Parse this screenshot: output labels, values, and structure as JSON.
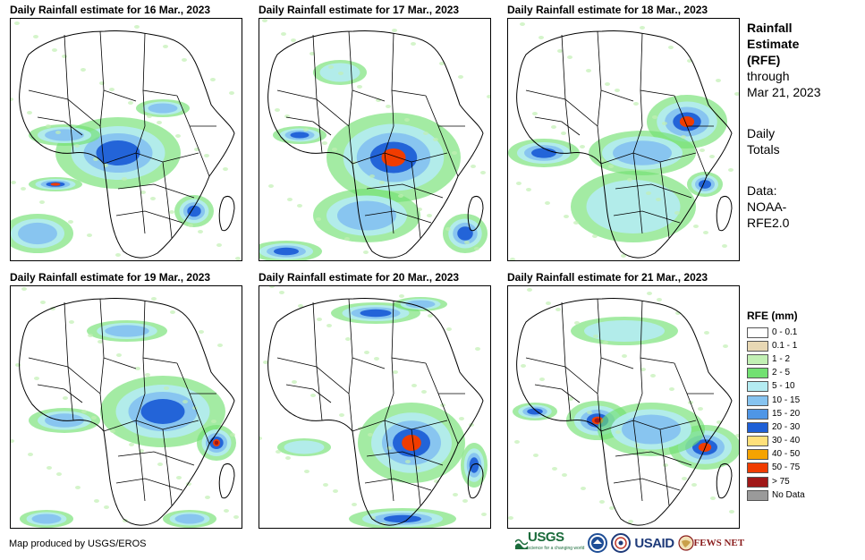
{
  "panels": [
    {
      "title": "Daily Rainfall estimate for 16 Mar., 2023"
    },
    {
      "title": "Daily Rainfall estimate for 17 Mar., 2023"
    },
    {
      "title": "Daily Rainfall estimate for 18 Mar., 2023"
    },
    {
      "title": "Daily Rainfall estimate for 19 Mar., 2023"
    },
    {
      "title": "Daily Rainfall estimate for 20 Mar., 2023"
    },
    {
      "title": "Daily Rainfall estimate for 21 Mar., 2023"
    }
  ],
  "sidebar": {
    "title_lines": [
      "Rainfall",
      "Estimate",
      "(RFE)"
    ],
    "through_lines": [
      "through",
      "Mar 21, 2023"
    ],
    "totals_lines": [
      "Daily",
      "Totals"
    ],
    "data_lines": [
      "Data:",
      "NOAA-",
      "RFE2.0"
    ]
  },
  "legend": {
    "title": "RFE (mm)",
    "items": [
      {
        "label": "0 - 0.1",
        "color": "#ffffff"
      },
      {
        "label": "0.1 - 1",
        "color": "#e8d8b4"
      },
      {
        "label": "1 - 2",
        "color": "#c2f0b4"
      },
      {
        "label": "2 - 5",
        "color": "#72e072"
      },
      {
        "label": "5 - 10",
        "color": "#b4ecf2"
      },
      {
        "label": "10 - 15",
        "color": "#86c3f0"
      },
      {
        "label": "15 - 20",
        "color": "#4f96e6"
      },
      {
        "label": "20 - 30",
        "color": "#1e5fd6"
      },
      {
        "label": "30 - 40",
        "color": "#ffe07a"
      },
      {
        "label": "40 - 50",
        "color": "#f5a300"
      },
      {
        "label": "50 - 75",
        "color": "#f03c00"
      },
      {
        "label": "> 75",
        "color": "#a01818"
      },
      {
        "label": "No Data",
        "color": "#9a9a9a"
      }
    ]
  },
  "footer": {
    "credit": "Map produced by USGS/EROS",
    "logos": {
      "usgs": "USGS",
      "usgs_tagline": "science for a changing world",
      "usaid": "USAID",
      "fews": "FEWS NET"
    }
  }
}
